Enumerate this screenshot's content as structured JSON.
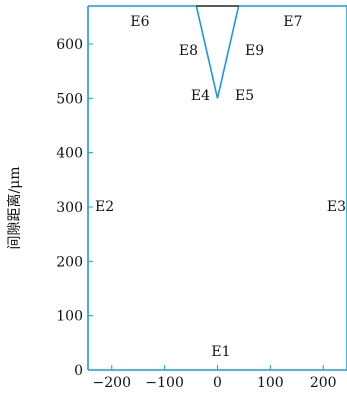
{
  "diagram": {
    "y_axis_title": "间隙距离/μm",
    "x_ticks": [
      {
        "value": -200,
        "label": "−200"
      },
      {
        "value": -100,
        "label": "−100"
      },
      {
        "value": 0,
        "label": "0"
      },
      {
        "value": 100,
        "label": "100"
      },
      {
        "value": 200,
        "label": "200"
      }
    ],
    "y_ticks": [
      {
        "value": 0,
        "label": "0"
      },
      {
        "value": 100,
        "label": "100"
      },
      {
        "value": 200,
        "label": "200"
      },
      {
        "value": 300,
        "label": "300"
      },
      {
        "value": 400,
        "label": "400"
      },
      {
        "value": 500,
        "label": "500"
      },
      {
        "value": 600,
        "label": "600"
      }
    ],
    "edge_labels": [
      {
        "id": "E1",
        "text": "E1"
      },
      {
        "id": "E2",
        "text": "E2"
      },
      {
        "id": "E3",
        "text": "E3"
      },
      {
        "id": "E4",
        "text": "E4"
      },
      {
        "id": "E5",
        "text": "E5"
      },
      {
        "id": "E6",
        "text": "E6"
      },
      {
        "id": "E7",
        "text": "E7"
      },
      {
        "id": "E8",
        "text": "E8"
      },
      {
        "id": "E9",
        "text": "E9"
      }
    ],
    "geometry_um": {
      "x_range": [
        -245,
        245
      ],
      "y_range": [
        0,
        670
      ],
      "tip_apex": [
        0,
        500
      ],
      "tip_top_left": [
        -40,
        670
      ],
      "tip_top_right": [
        40,
        670
      ]
    },
    "colors": {
      "boundary": "#1a9bd7",
      "tip_top": "#222222",
      "text": "#111111"
    }
  }
}
